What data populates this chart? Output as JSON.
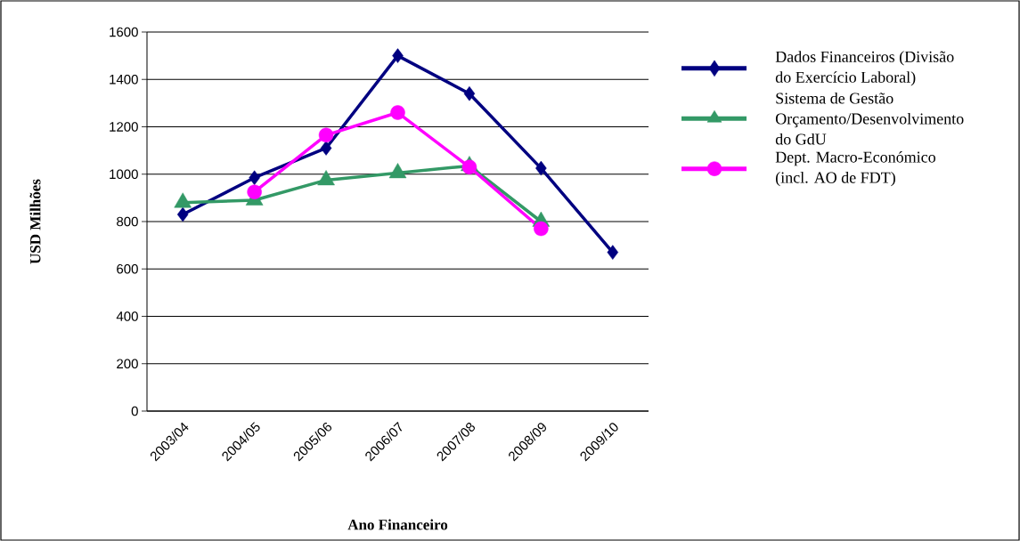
{
  "chart_data": {
    "type": "line",
    "xlabel": "Ano Financeiro",
    "ylabel": "USD Milhões",
    "categories": [
      "2003/04",
      "2004/05",
      "2005/06",
      "2006/07",
      "2007/08",
      "2008/09",
      "2009/10"
    ],
    "ylim": [
      0,
      1600
    ],
    "yticks": [
      0,
      200,
      400,
      600,
      800,
      1000,
      1200,
      1400,
      1600
    ],
    "grid": "y",
    "legend": "right",
    "line_style": "solid",
    "series": [
      {
        "name": "Dados Financeiros (Divisão do Exercício Laboral)",
        "color": "#000080",
        "marker": "diamond",
        "values": [
          830,
          985,
          1110,
          1500,
          1340,
          1025,
          670
        ]
      },
      {
        "name": "Sistema de Gestão Orçamento/Desenvolvimento do GdU",
        "color": "#339966",
        "marker": "triangle",
        "values": [
          880,
          890,
          975,
          1005,
          1035,
          800,
          null
        ]
      },
      {
        "name": "Dept. Macro-Económico (incl. AO de FDT)",
        "color": "#ff00ff",
        "marker": "circle",
        "values": [
          null,
          925,
          1165,
          1260,
          1030,
          770,
          null
        ]
      }
    ]
  }
}
